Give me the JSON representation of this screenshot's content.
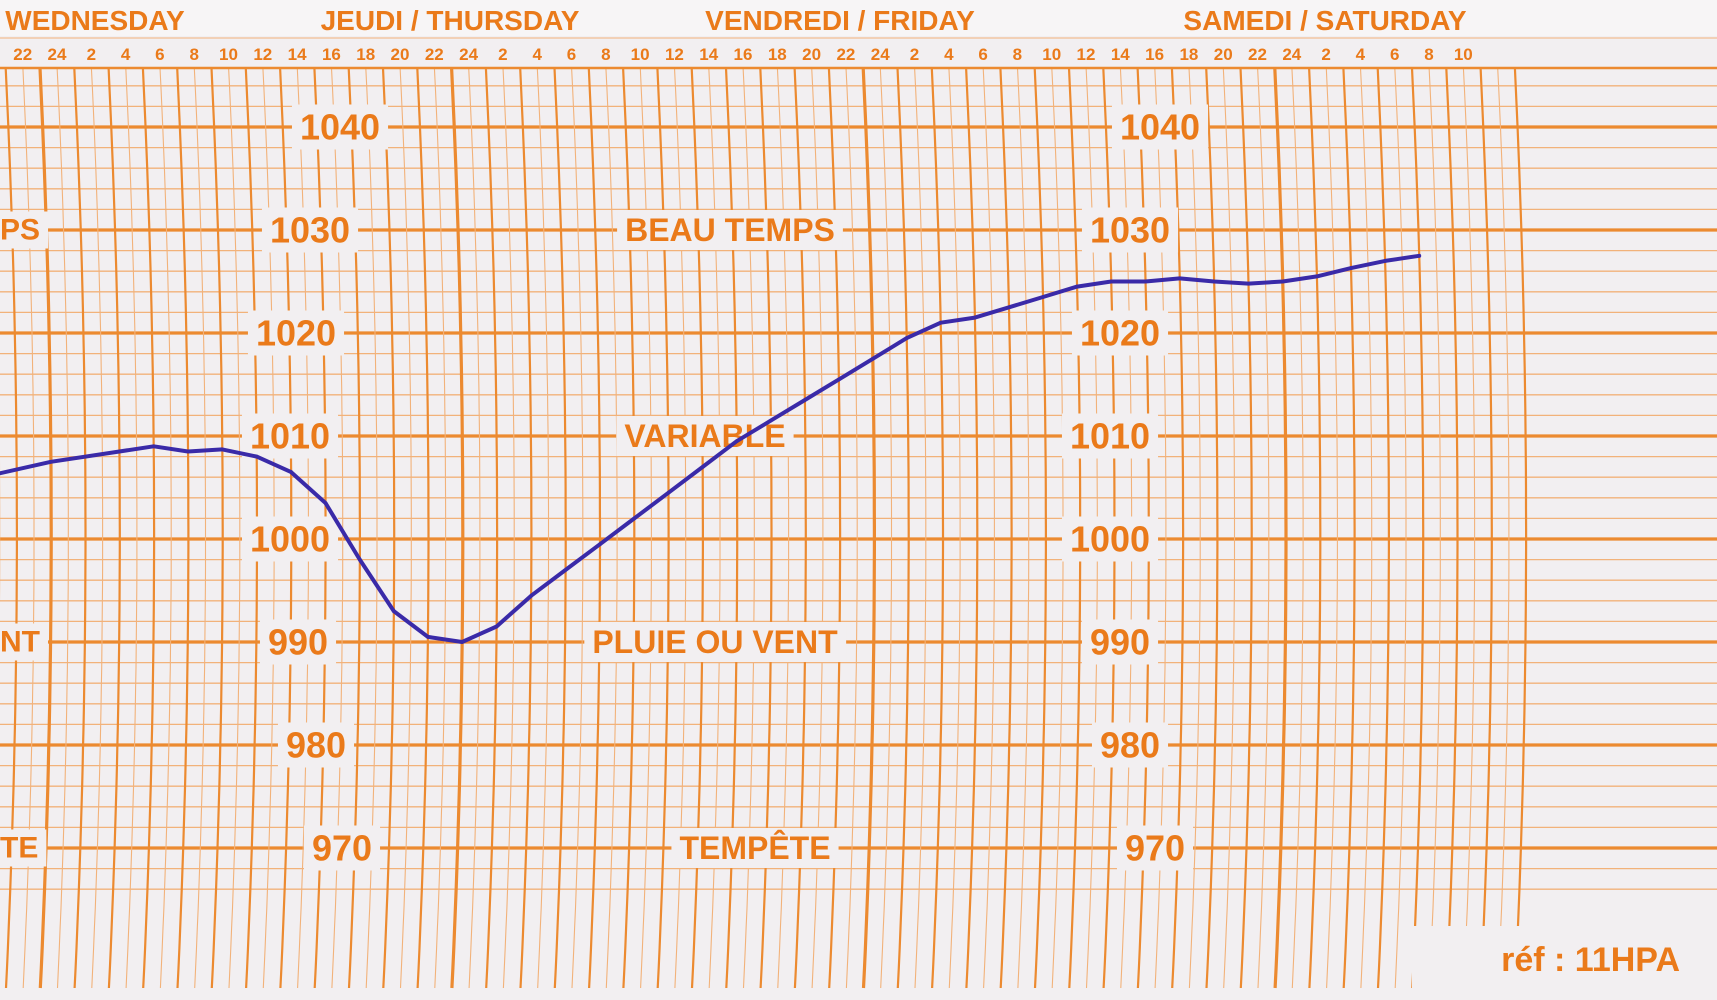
{
  "chart_data": {
    "type": "line",
    "title": "",
    "xlabel": "",
    "ylabel": "",
    "units": "hPa",
    "days": [
      {
        "label": "WEDNESDAY",
        "start_hour": -24
      },
      {
        "label": "JEUDI / THURSDAY",
        "start_hour": 0
      },
      {
        "label": "VENDREDI / FRIDAY",
        "start_hour": 24
      },
      {
        "label": "SAMEDI / SATURDAY",
        "start_hour": 48
      }
    ],
    "hour_ticks": [
      "16",
      "18",
      "20",
      "22",
      "24",
      "2",
      "4",
      "6",
      "8",
      "10",
      "12",
      "14",
      "16",
      "18",
      "20",
      "22",
      "24",
      "2",
      "4",
      "6",
      "8",
      "10",
      "12",
      "14",
      "16",
      "18",
      "20",
      "22",
      "24",
      "2",
      "4",
      "6",
      "8",
      "10",
      "12",
      "14",
      "16",
      "18",
      "20",
      "22",
      "24",
      "2",
      "4",
      "6",
      "8",
      "10"
    ],
    "pressure_ticks": [
      1040,
      1030,
      1020,
      1010,
      1000,
      990,
      980,
      970
    ],
    "weather_labels": [
      {
        "text": "BEAU TEMPS",
        "pressure": 1030
      },
      {
        "text": "VARIABLE",
        "pressure": 1010
      },
      {
        "text": "PLUIE OU VENT",
        "pressure": 990
      },
      {
        "text": "TEMPÊTE",
        "pressure": 970
      }
    ],
    "edge_labels": [
      {
        "text": "PS",
        "pressure": 1030
      },
      {
        "text": "NT",
        "pressure": 990
      },
      {
        "text": "TE",
        "pressure": 970
      }
    ],
    "ref": "réf : 11HPA",
    "ylim": [
      965,
      1045
    ],
    "grid": true,
    "colors": {
      "grid": "#ec8a30",
      "grid_minor": "#f2b27a",
      "text": "#ea7a1a",
      "trace": "#3a2aa8",
      "paper": "#f2eff1"
    },
    "series": [
      {
        "x": [
          "Wed 13:00",
          "Wed 16:00",
          "Wed 20:00",
          "Thu 00:00",
          "Thu 04:00",
          "Thu 06:00",
          "Thu 08:00",
          "Thu 10:00",
          "Thu 12:00",
          "Thu 14:00",
          "Thu 16:00",
          "Thu 18:00",
          "Thu 20:00",
          "Thu 22:00",
          "Fri 00:00",
          "Fri 02:00",
          "Fri 04:00",
          "Fri 06:00",
          "Fri 08:00",
          "Fri 10:00",
          "Fri 12:00",
          "Fri 14:00",
          "Fri 16:00",
          "Fri 18:00",
          "Fri 20:00",
          "Fri 22:00",
          "Sat 00:00",
          "Sat 02:00",
          "Sat 04:00",
          "Sat 06:00",
          "Sat 08:00",
          "Sat 10:00",
          "Sat 12:00",
          "Sat 14:00",
          "Sat 16:00",
          "Sat 18:00",
          "Sat 20:00",
          "Sat 22:00",
          "Sun 00:00",
          "Sun 02:00",
          "Sun 04:00",
          "Sun 06:00",
          "Sun 08:00"
        ],
        "hours": [
          -11,
          -8,
          -4,
          0,
          4,
          6,
          8,
          10,
          12,
          14,
          16,
          18,
          20,
          22,
          24,
          26,
          28,
          30,
          32,
          34,
          36,
          38,
          40,
          42,
          44,
          46,
          48,
          50,
          52,
          54,
          56,
          58,
          60,
          62,
          64,
          66,
          68,
          70,
          72,
          74,
          76,
          78,
          80
        ],
        "values": [
          1003,
          1004.5,
          1006,
          1007.5,
          1008.5,
          1009,
          1008.5,
          1008.7,
          1008,
          1006.5,
          1003.5,
          998,
          993,
          990.5,
          990,
          991.5,
          994.5,
          997,
          999.5,
          1002,
          1004.5,
          1007,
          1009.5,
          1011.5,
          1013.5,
          1015.5,
          1017.5,
          1019.5,
          1021,
          1021.5,
          1022.5,
          1023.5,
          1024.5,
          1025,
          1025,
          1025.3,
          1025,
          1024.8,
          1025,
          1025.5,
          1026.3,
          1027,
          1027.5
        ]
      }
    ]
  }
}
